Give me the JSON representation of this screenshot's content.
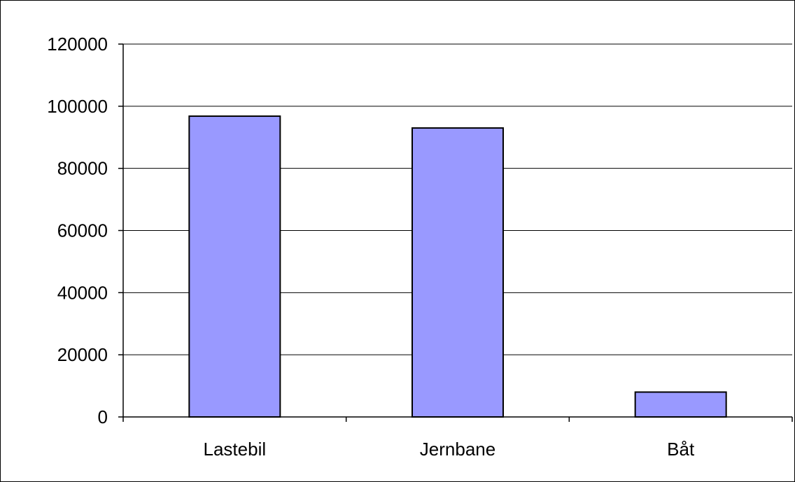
{
  "chart_data": {
    "type": "bar",
    "title": "",
    "xlabel": "",
    "ylabel": "",
    "categories": [
      "Lastebil",
      "Jernbane",
      "Båt"
    ],
    "values": [
      96800,
      93000,
      8000
    ],
    "ylim": [
      0,
      120000
    ],
    "yticks": [
      0,
      20000,
      40000,
      60000,
      80000,
      100000,
      120000
    ],
    "ytick_labels": [
      "0",
      "20000",
      "40000",
      "60000",
      "80000",
      "100000",
      "120000"
    ],
    "grid": "horizontal",
    "legend": "none",
    "colors": {
      "bar_fill": "#9999ff",
      "bar_stroke": "#000000",
      "grid": "#000000",
      "axis": "#000000",
      "frame": "#000000"
    }
  }
}
